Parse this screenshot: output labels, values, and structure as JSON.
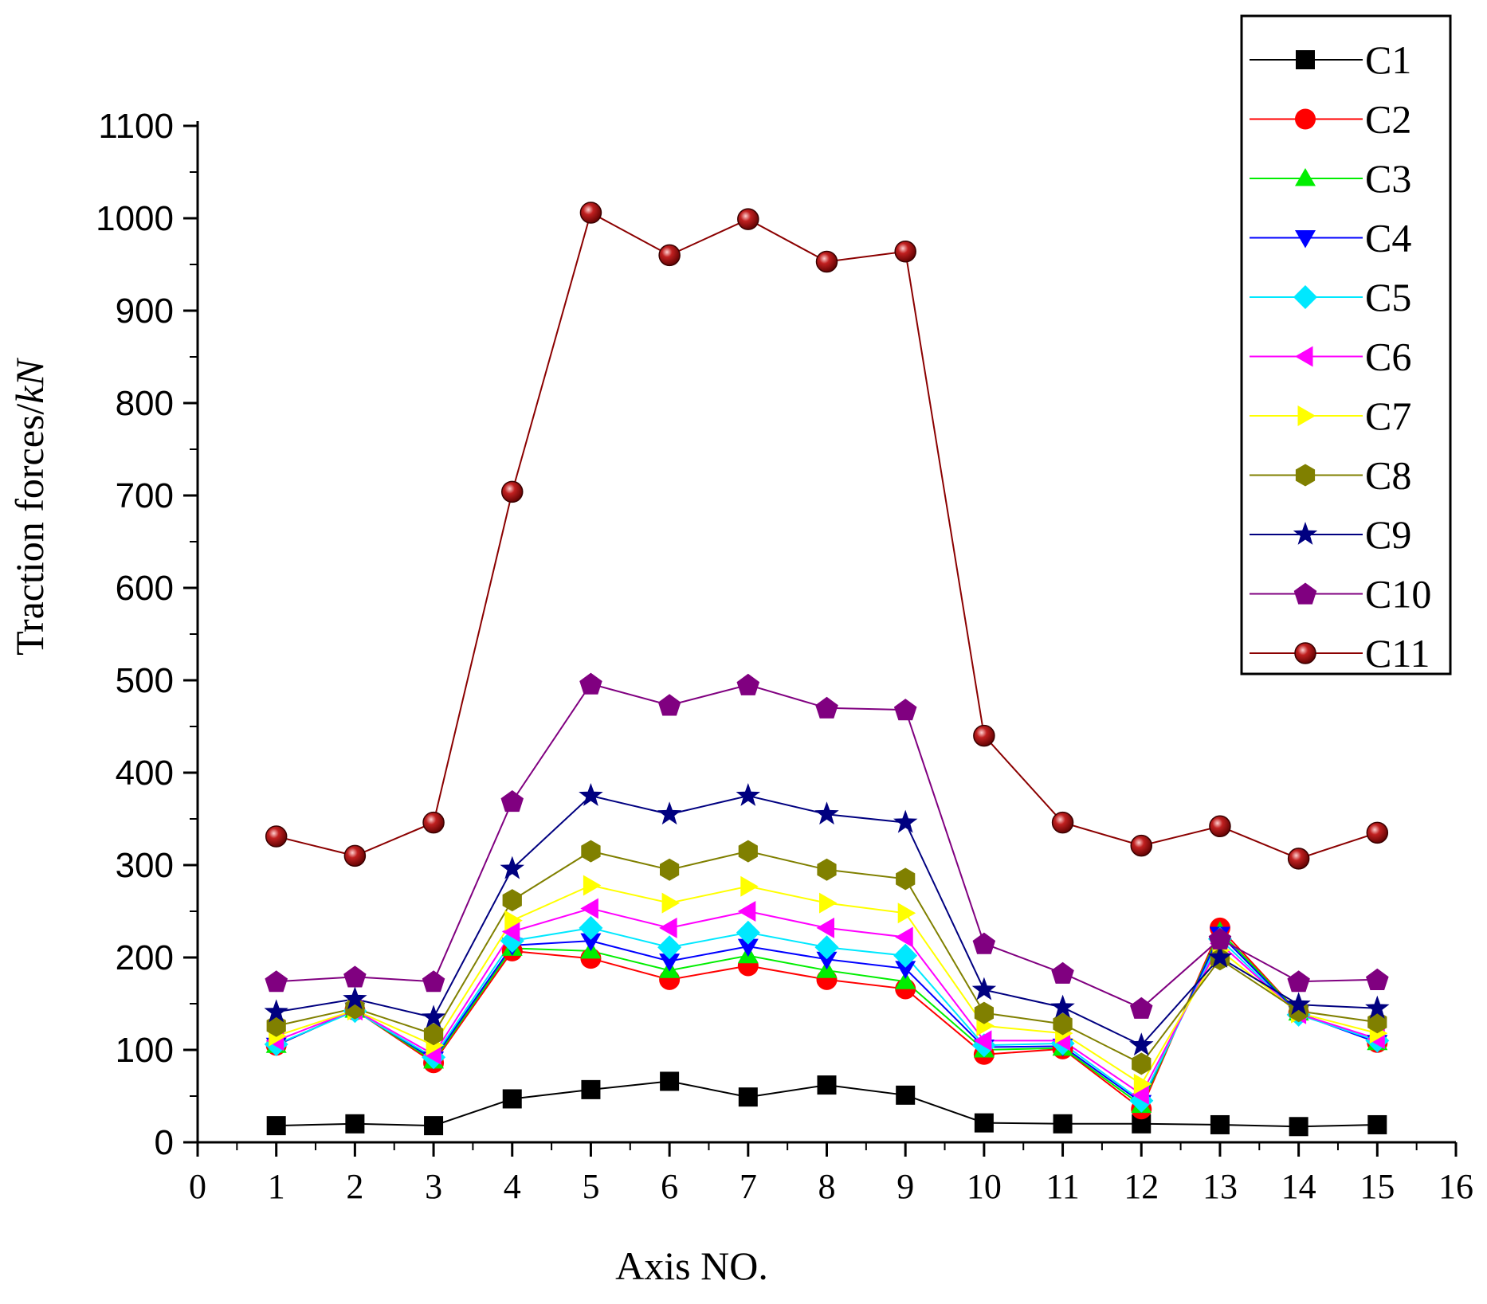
{
  "chart_data": {
    "type": "line",
    "title": "",
    "xlabel": "Axis NO.",
    "ylabel_main": "Traction forces/",
    "ylabel_unit": "kN",
    "xlim": [
      0,
      16
    ],
    "ylim": [
      0,
      1100
    ],
    "x_ticks": [
      0,
      1,
      2,
      3,
      4,
      5,
      6,
      7,
      8,
      9,
      10,
      11,
      12,
      13,
      14,
      15,
      16
    ],
    "y_ticks": [
      0,
      100,
      200,
      300,
      400,
      500,
      600,
      700,
      800,
      900,
      1000,
      1100
    ],
    "grid": false,
    "legend_position": "top-right",
    "x": [
      1,
      2,
      3,
      4,
      5,
      6,
      7,
      8,
      9,
      10,
      11,
      12,
      13,
      14,
      15
    ],
    "series": [
      {
        "name": "C1",
        "color": "#000000",
        "marker": "square",
        "values": [
          18,
          20,
          18,
          47,
          57,
          66,
          49,
          62,
          51,
          21,
          20,
          20,
          19,
          17,
          19
        ]
      },
      {
        "name": "C2",
        "color": "#ff0000",
        "marker": "circle",
        "values": [
          105,
          143,
          86,
          207,
          199,
          176,
          191,
          176,
          166,
          95,
          101,
          36,
          232,
          140,
          108
        ]
      },
      {
        "name": "C3",
        "color": "#00ee00",
        "marker": "triangle-up",
        "values": [
          105,
          143,
          88,
          210,
          207,
          186,
          202,
          186,
          174,
          100,
          102,
          40,
          228,
          140,
          108
        ]
      },
      {
        "name": "C4",
        "color": "#0000ff",
        "marker": "triangle-down",
        "values": [
          105,
          143,
          90,
          213,
          218,
          196,
          212,
          198,
          188,
          103,
          104,
          43,
          225,
          139,
          108
        ]
      },
      {
        "name": "C5",
        "color": "#00e8ff",
        "marker": "diamond",
        "values": [
          106,
          142,
          92,
          218,
          232,
          211,
          227,
          211,
          202,
          105,
          107,
          45,
          220,
          138,
          110
        ]
      },
      {
        "name": "C6",
        "color": "#ff00ff",
        "marker": "triangle-left",
        "values": [
          110,
          143,
          95,
          228,
          253,
          232,
          250,
          232,
          222,
          110,
          110,
          52,
          215,
          139,
          112
        ]
      },
      {
        "name": "C7",
        "color": "#ffff00",
        "marker": "triangle-right",
        "values": [
          115,
          143,
          105,
          240,
          278,
          259,
          277,
          259,
          248,
          126,
          118,
          63,
          208,
          140,
          118
        ]
      },
      {
        "name": "C8",
        "color": "#808000",
        "marker": "hexagon",
        "values": [
          126,
          145,
          117,
          262,
          315,
          295,
          315,
          295,
          285,
          140,
          128,
          85,
          198,
          142,
          130
        ]
      },
      {
        "name": "C9",
        "color": "#000080",
        "marker": "star",
        "values": [
          141,
          155,
          135,
          296,
          375,
          355,
          375,
          355,
          346,
          165,
          146,
          105,
          200,
          149,
          145
        ]
      },
      {
        "name": "C10",
        "color": "#800080",
        "marker": "pentagon",
        "values": [
          174,
          179,
          174,
          369,
          496,
          473,
          495,
          470,
          468,
          215,
          183,
          145,
          220,
          174,
          176
        ]
      },
      {
        "name": "C11",
        "color": "#8b0000",
        "marker": "sphere",
        "values": [
          331,
          310,
          346,
          704,
          1006,
          960,
          999,
          953,
          964,
          440,
          346,
          321,
          342,
          307,
          335
        ]
      }
    ]
  }
}
